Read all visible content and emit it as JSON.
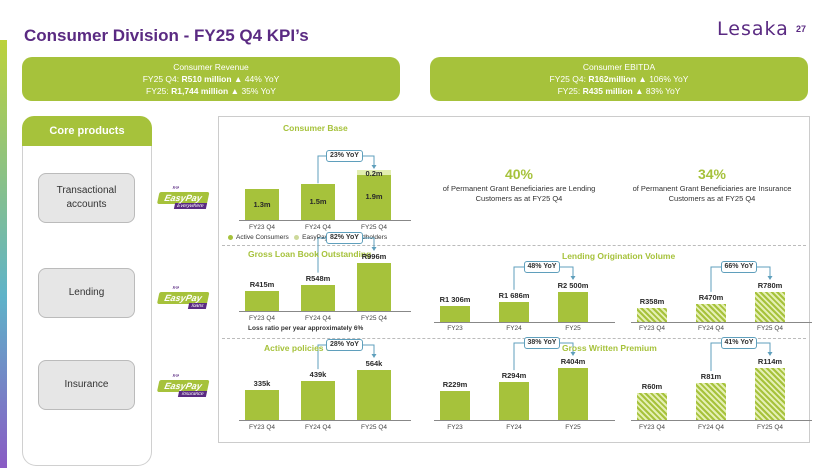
{
  "header": {
    "title": "Consumer Division - FY25 Q4 KPI’s",
    "logo": "Lesaka",
    "page_number": "27"
  },
  "kpis": {
    "revenue": {
      "label": "Consumer Revenue",
      "q4_prefix": "FY25 Q4:",
      "q4_value": "R510 million",
      "q4_arrow": "▲",
      "q4_change": "44% YoY",
      "fy_prefix": "FY25:",
      "fy_value": "R1,744 million",
      "fy_arrow": "▲",
      "fy_change": "35% YoY"
    },
    "ebitda": {
      "label": "Consumer EBITDA",
      "q4_prefix": "FY25 Q4:",
      "q4_value": "R162million",
      "q4_arrow": "▲",
      "q4_change": "106% YoY",
      "fy_prefix": "FY25:",
      "fy_value": "R435 million",
      "fy_arrow": "▲",
      "fy_change": "83% YoY"
    }
  },
  "core_products": {
    "title": "Core products",
    "items": [
      {
        "label": "Transactional accounts",
        "brand": "EasyPay",
        "sub": "Everywhere"
      },
      {
        "label": "Lending",
        "brand": "EasyPay",
        "sub": "loans"
      },
      {
        "label": "Insurance",
        "brand": "EasyPay",
        "sub": "insurance"
      }
    ]
  },
  "colors": {
    "accent_green": "#a6c23b",
    "brand_purple": "#5a2a82",
    "yoy_border": "#5f9fbc"
  },
  "stats": {
    "lending": {
      "value": "40%",
      "note": "of Permanent Grant Beneficiaries are Lending Customers as at FY25 Q4"
    },
    "insurance": {
      "value": "34%",
      "note": "of Permanent Grant Beneficiaries are Insurance Customers as at FY25 Q4"
    }
  },
  "legend": {
    "active": "Active Consumers",
    "payout": "EasyPay Payout Cardholders"
  },
  "loss_note": "Loss ratio per year approximately 6%",
  "chart_data": [
    {
      "type": "bar",
      "title": "Consumer Base",
      "categories": [
        "FY23 Q4",
        "FY24 Q4",
        "FY25 Q4"
      ],
      "series": [
        {
          "name": "Active Consumers",
          "values": [
            1.3,
            1.5,
            1.9
          ],
          "labels": [
            "1.3m",
            "1.5m",
            "1.9m"
          ]
        },
        {
          "name": "EasyPay Payout Cardholders",
          "values": [
            0,
            0,
            0.2
          ],
          "labels": [
            "",
            "",
            "0.2m"
          ]
        }
      ],
      "yoy": "23% YoY"
    },
    {
      "type": "bar",
      "title": "Gross Loan Book Outstanding",
      "categories": [
        "FY23 Q4",
        "FY24 Q4",
        "FY25 Q4"
      ],
      "values": [
        415,
        548,
        996
      ],
      "labels": [
        "R415m",
        "R548m",
        "R996m"
      ],
      "yoy": "82% YoY"
    },
    {
      "type": "bar",
      "title": "Lending Origination Volume",
      "categories": [
        "FY23",
        "FY24",
        "FY25"
      ],
      "values": [
        1306,
        1686,
        2500
      ],
      "labels": [
        "R1 306m",
        "R1 686m",
        "R2 500m"
      ],
      "yoy": "48% YoY"
    },
    {
      "type": "bar",
      "title": "",
      "categories": [
        "FY23 Q4",
        "FY24 Q4",
        "FY25 Q4"
      ],
      "values": [
        358,
        470,
        780
      ],
      "labels": [
        "R358m",
        "R470m",
        "R780m"
      ],
      "yoy": "66% YoY"
    },
    {
      "type": "bar",
      "title": "Active policies on book",
      "categories": [
        "FY23 Q4",
        "FY24 Q4",
        "FY25 Q4"
      ],
      "values": [
        335,
        439,
        564
      ],
      "labels": [
        "335k",
        "439k",
        "564k"
      ],
      "yoy": "28% YoY"
    },
    {
      "type": "bar",
      "title": "Gross Written Premium",
      "categories": [
        "FY23",
        "FY24",
        "FY25"
      ],
      "values": [
        229,
        294,
        404
      ],
      "labels": [
        "R229m",
        "R294m",
        "R404m"
      ],
      "yoy": "38% YoY"
    },
    {
      "type": "bar",
      "title": "",
      "categories": [
        "FY23 Q4",
        "FY24 Q4",
        "FY25 Q4"
      ],
      "values": [
        60,
        81,
        114
      ],
      "labels": [
        "R60m",
        "R81m",
        "R114m"
      ],
      "yoy": "41% YoY"
    }
  ]
}
